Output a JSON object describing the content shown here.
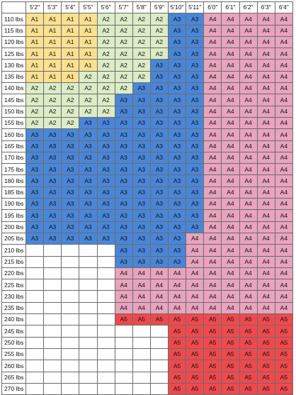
{
  "chart": {
    "heights": [
      "5'2\"",
      "5'3\"",
      "5'4\"",
      "5'5\"",
      "5'6\"",
      "5'7\"",
      "5'8\"",
      "5'9\"",
      "5'10\"",
      "5'11\"",
      "6'0\"",
      "6'1\"",
      "6'2\"",
      "6'3\"",
      "6'4\""
    ],
    "size_colors": {
      "A1": "#fbe090",
      "A2": "#dcecc6",
      "A3": "#4a86d8",
      "A4": "#e8a4bc",
      "A5": "#ee4a4e"
    },
    "rows": [
      {
        "weight": "110 lbs",
        "cells": [
          "A1",
          "A1",
          "A1",
          "A1",
          "A2",
          "A2",
          "A2",
          "A2",
          "A3",
          "A3",
          "A4",
          "A4",
          "A4",
          "A4",
          "A4"
        ]
      },
      {
        "weight": "115 lbs",
        "cells": [
          "A1",
          "A1",
          "A1",
          "A1",
          "A2",
          "A2",
          "A2",
          "A2",
          "A3",
          "A3",
          "A4",
          "A4",
          "A4",
          "A4",
          "A4"
        ]
      },
      {
        "weight": "120 lbs",
        "cells": [
          "A1",
          "A1",
          "A1",
          "A1",
          "A2",
          "A2",
          "A2",
          "A2",
          "A3",
          "A3",
          "A4",
          "A4",
          "A4",
          "A4",
          "A4"
        ]
      },
      {
        "weight": "125 lbs",
        "cells": [
          "A1",
          "A1",
          "A1",
          "A1",
          "A2",
          "A2",
          "A2",
          "A2",
          "A3",
          "A3",
          "A4",
          "A4",
          "A4",
          "A4",
          "A4"
        ]
      },
      {
        "weight": "130 lbs",
        "cells": [
          "A1",
          "A1",
          "A1",
          "A1",
          "A2",
          "A2",
          "A2",
          "A3",
          "A3",
          "A3",
          "A4",
          "A4",
          "A4",
          "A4",
          "A4"
        ]
      },
      {
        "weight": "135 lbs",
        "cells": [
          "A1",
          "A1",
          "A1",
          "A2",
          "A2",
          "A2",
          "A2",
          "A3",
          "A3",
          "A3",
          "A4",
          "A4",
          "A4",
          "A4",
          "A4"
        ]
      },
      {
        "weight": "140 lbs",
        "cells": [
          "A2",
          "A2",
          "A2",
          "A2",
          "A2",
          "A2",
          "A3",
          "A3",
          "A3",
          "A3",
          "A4",
          "A4",
          "A4",
          "A4",
          "A4"
        ]
      },
      {
        "weight": "145 lbs",
        "cells": [
          "A2",
          "A2",
          "A2",
          "A2",
          "A2",
          "A3",
          "A3",
          "A3",
          "A3",
          "A3",
          "A4",
          "A4",
          "A4",
          "A4",
          "A4"
        ]
      },
      {
        "weight": "150 lbs",
        "cells": [
          "A2",
          "A2",
          "A2",
          "A2",
          "A2",
          "A3",
          "A3",
          "A3",
          "A3",
          "A3",
          "A4",
          "A4",
          "A4",
          "A4",
          "A4"
        ]
      },
      {
        "weight": "155 lbs",
        "cells": [
          "A2",
          "A2",
          "A2",
          "A3",
          "A3",
          "A3",
          "A3",
          "A3",
          "A3",
          "A3",
          "A4",
          "A4",
          "A4",
          "A4",
          "A4"
        ]
      },
      {
        "weight": "160 lbs",
        "cells": [
          "A3",
          "A3",
          "A3",
          "A3",
          "A3",
          "A3",
          "A3",
          "A3",
          "A3",
          "A3",
          "A4",
          "A4",
          "A4",
          "A4",
          "A4"
        ]
      },
      {
        "weight": "165 lbs",
        "cells": [
          "A3",
          "A3",
          "A3",
          "A3",
          "A3",
          "A3",
          "A3",
          "A3",
          "A3",
          "A3",
          "A4",
          "A4",
          "A4",
          "A4",
          "A4"
        ]
      },
      {
        "weight": "170 lbs",
        "cells": [
          "A3",
          "A3",
          "A3",
          "A3",
          "A3",
          "A3",
          "A3",
          "A3",
          "A3",
          "A3",
          "A4",
          "A4",
          "A4",
          "A4",
          "A4"
        ]
      },
      {
        "weight": "175 lbs",
        "cells": [
          "A3",
          "A3",
          "A3",
          "A3",
          "A3",
          "A3",
          "A3",
          "A3",
          "A3",
          "A3",
          "A4",
          "A4",
          "A4",
          "A4",
          "A4"
        ]
      },
      {
        "weight": "180 lbs",
        "cells": [
          "A3",
          "A3",
          "A3",
          "A3",
          "A3",
          "A3",
          "A3",
          "A3",
          "A3",
          "A3",
          "A4",
          "A4",
          "A4",
          "A4",
          "A4"
        ]
      },
      {
        "weight": "185 lbs",
        "cells": [
          "A3",
          "A3",
          "A3",
          "A3",
          "A3",
          "A3",
          "A3",
          "A3",
          "A3",
          "A3",
          "A4",
          "A4",
          "A4",
          "A4",
          "A4"
        ]
      },
      {
        "weight": "190 lbs",
        "cells": [
          "A3",
          "A3",
          "A3",
          "A3",
          "A3",
          "A3",
          "A3",
          "A3",
          "A3",
          "A3",
          "A4",
          "A4",
          "A4",
          "A4",
          "A4"
        ]
      },
      {
        "weight": "195 lbs",
        "cells": [
          "A3",
          "A3",
          "A3",
          "A3",
          "A3",
          "A3",
          "A3",
          "A3",
          "A3",
          "A3",
          "A4",
          "A4",
          "A4",
          "A4",
          "A4"
        ]
      },
      {
        "weight": "200 lbs",
        "cells": [
          "A3",
          "A3",
          "A3",
          "A3",
          "A3",
          "A3",
          "A3",
          "A3",
          "A3",
          "A3",
          "A4",
          "A4",
          "A4",
          "A4",
          "A4"
        ]
      },
      {
        "weight": "205 lbs",
        "cells": [
          "A3",
          "A3",
          "A3",
          "A3",
          "A3",
          "A3",
          "A3",
          "A3",
          "A3",
          "A4",
          "A4",
          "A4",
          "A4",
          "A4",
          "A4"
        ]
      },
      {
        "weight": "210 lbs",
        "cells": [
          "",
          "",
          "",
          "",
          "",
          "A3",
          "A3",
          "A3",
          "A3",
          "A4",
          "A4",
          "A4",
          "A4",
          "A4",
          "A4"
        ]
      },
      {
        "weight": "215 lbs",
        "cells": [
          "",
          "",
          "",
          "",
          "",
          "A3",
          "A3",
          "A3",
          "A3",
          "A4",
          "A4",
          "A4",
          "A4",
          "A4",
          "A4"
        ]
      },
      {
        "weight": "220 lbs",
        "cells": [
          "",
          "",
          "",
          "",
          "",
          "A4",
          "A4",
          "A4",
          "A4",
          "A4",
          "A4",
          "A4",
          "A4",
          "A4",
          "A4"
        ]
      },
      {
        "weight": "225 lbs",
        "cells": [
          "",
          "",
          "",
          "",
          "",
          "A4",
          "A4",
          "A4",
          "A4",
          "A4",
          "A4",
          "A4",
          "A4",
          "A4",
          "A4"
        ]
      },
      {
        "weight": "230 lbs",
        "cells": [
          "",
          "",
          "",
          "",
          "",
          "A4",
          "A4",
          "A4",
          "A4",
          "A4",
          "A4",
          "A4",
          "A4",
          "A4",
          "A4"
        ]
      },
      {
        "weight": "235 lbs",
        "cells": [
          "",
          "",
          "",
          "",
          "",
          "A4",
          "A4",
          "A4",
          "A4",
          "A4",
          "A4",
          "A4",
          "A4",
          "A4",
          "A4"
        ]
      },
      {
        "weight": "240 lbs",
        "cells": [
          "",
          "",
          "",
          "",
          "",
          "A5",
          "A5",
          "A5",
          "A5",
          "A5",
          "A5",
          "A5",
          "A5",
          "A5",
          "A5"
        ]
      },
      {
        "weight": "245 lbs",
        "cells": [
          "",
          "",
          "",
          "",
          "",
          "",
          "",
          "",
          "A5",
          "A5",
          "A5",
          "A5",
          "A5",
          "A5",
          "A5"
        ]
      },
      {
        "weight": "250 lbs",
        "cells": [
          "",
          "",
          "",
          "",
          "",
          "",
          "",
          "",
          "A5",
          "A5",
          "A5",
          "A5",
          "A5",
          "A5",
          "A5"
        ]
      },
      {
        "weight": "255 lbs",
        "cells": [
          "",
          "",
          "",
          "",
          "",
          "",
          "",
          "",
          "A5",
          "A5",
          "A5",
          "A5",
          "A5",
          "A5",
          "A5"
        ]
      },
      {
        "weight": "260 lbs",
        "cells": [
          "",
          "",
          "",
          "",
          "",
          "",
          "",
          "",
          "A5",
          "A5",
          "A5",
          "A5",
          "A5",
          "A5",
          "A5"
        ]
      },
      {
        "weight": "265 lbs",
        "cells": [
          "",
          "",
          "",
          "",
          "",
          "",
          "",
          "",
          "A5",
          "A5",
          "A5",
          "A5",
          "A5",
          "A5",
          "A5"
        ]
      },
      {
        "weight": "270 lbs",
        "cells": [
          "",
          "",
          "",
          "",
          "",
          "",
          "",
          "",
          "A5",
          "A5",
          "A5",
          "A5",
          "A5",
          "A5",
          "A5"
        ]
      }
    ]
  }
}
